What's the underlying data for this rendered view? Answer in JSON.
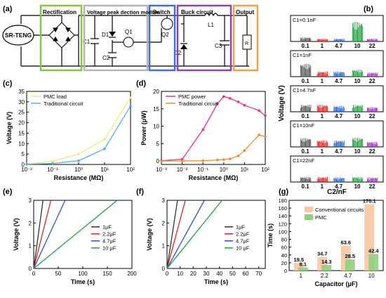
{
  "figure": {
    "panel_labels": [
      "(a)",
      "(b)",
      "(c)",
      "(d)",
      "(e)",
      "(f)",
      "(g)"
    ]
  },
  "circuit": {
    "source": "SR-TENG",
    "modules": [
      {
        "label": "Rectification",
        "color": "#8bc34a"
      },
      {
        "label": "Voltage peak dection module",
        "color": "#b5b5b5"
      },
      {
        "label": "Switch",
        "color": "#3f6fd1"
      },
      {
        "label": "Buck circuit",
        "color": "#8e44ad"
      },
      {
        "label": "Output",
        "color": "#f0a04b"
      }
    ],
    "components": {
      "c1": "C1",
      "d1": "D1",
      "q1": "Q1",
      "c2": "C2",
      "q2": "Q2",
      "l1": "L1",
      "d2": "D2",
      "c3": "C3",
      "load": "R"
    }
  },
  "chart_data": [
    {
      "id": "b",
      "type": "bar",
      "title": "",
      "xlabel": "C2/nF",
      "ylabel": "Voltage (V)",
      "categories": [
        "0.1",
        "1",
        "4.7",
        "10",
        "22"
      ],
      "category_colors": [
        "#555555",
        "#e02020",
        "#2060d0",
        "#20a040",
        "#a030c0"
      ],
      "rows": [
        {
          "label": "C1=0.1nF",
          "values": [
            0.18,
            0.12,
            0.12,
            0.85,
            0.12
          ]
        },
        {
          "label": "C1=1nF",
          "values": [
            0.55,
            0.22,
            0.22,
            0.3,
            0.18
          ]
        },
        {
          "label": "C1=4.7nF",
          "values": [
            0.3,
            0.3,
            0.25,
            0.3,
            0.2
          ]
        },
        {
          "label": "C1=10nF",
          "values": [
            0.38,
            0.28,
            0.28,
            0.4,
            0.22
          ]
        },
        {
          "label": "C1=22nF",
          "values": [
            0.22,
            0.22,
            0.2,
            0.22,
            0.2
          ]
        }
      ]
    },
    {
      "id": "c",
      "type": "line",
      "xlabel": "Resistance (MΩ)",
      "ylabel": "Voltage (V)",
      "xscale": "log",
      "xlim": [
        0.01,
        100
      ],
      "ylim": [
        0,
        35
      ],
      "yticks": [
        0,
        5,
        10,
        15,
        20,
        25,
        30,
        35
      ],
      "xticks": [
        "10⁻²",
        "10⁻¹",
        "10⁰",
        "10¹",
        "10²"
      ],
      "legend": "top-left",
      "series": [
        {
          "name": "PMC load",
          "color": "#f5e87a",
          "x": [
            0.01,
            0.1,
            1,
            10,
            100
          ],
          "y": [
            0.2,
            1.5,
            5,
            12,
            32
          ]
        },
        {
          "name": "Traditional circuit",
          "color": "#4fb0e8",
          "x": [
            0.01,
            0.1,
            1,
            10,
            100
          ],
          "y": [
            0.1,
            0.5,
            1.8,
            7.5,
            28
          ]
        }
      ]
    },
    {
      "id": "d",
      "type": "line",
      "xlabel": "Resistance (MΩ)",
      "ylabel": "Power (μW)",
      "xscale": "log",
      "xlim": [
        0.001,
        100
      ],
      "ylim": [
        -1,
        20
      ],
      "yticks": [
        0,
        5,
        10,
        15,
        20
      ],
      "xticks": [
        "10⁻³",
        "10⁻²",
        "10⁻¹",
        "10⁰",
        "10¹",
        "10²"
      ],
      "legend": "top-left",
      "series": [
        {
          "name": "PMC power",
          "color": "#e8308a",
          "x": [
            0.001,
            0.01,
            0.1,
            0.5,
            1,
            2,
            5,
            10,
            50,
            100
          ],
          "y": [
            0.1,
            0.5,
            9,
            16.5,
            18.5,
            18,
            17,
            16,
            14.5,
            13
          ]
        },
        {
          "name": "Traditional circuit",
          "color": "#f08a2a",
          "x": [
            0.001,
            0.01,
            0.1,
            0.5,
            1,
            2,
            5,
            10,
            50,
            100
          ],
          "y": [
            0,
            0,
            0.1,
            0.3,
            0.4,
            0.6,
            1.5,
            3,
            7.5,
            7
          ]
        }
      ]
    },
    {
      "id": "e",
      "type": "line",
      "xlabel": "Time (s)",
      "ylabel": "Voltage (V)",
      "xlim": [
        0,
        200
      ],
      "ylim": [
        0,
        3
      ],
      "xticks": [
        0,
        50,
        100,
        150,
        200
      ],
      "yticks": [
        0,
        1,
        2,
        3
      ],
      "legend": "right",
      "series": [
        {
          "name": "1μF",
          "color": "#333333",
          "x": [
            0,
            19
          ],
          "y": [
            0,
            3
          ]
        },
        {
          "name": "2.2μF",
          "color": "#e02020",
          "x": [
            0,
            35
          ],
          "y": [
            0,
            3
          ]
        },
        {
          "name": "4.7μF",
          "color": "#3050c8",
          "x": [
            0,
            64
          ],
          "y": [
            0,
            3
          ]
        },
        {
          "name": "10 μF",
          "color": "#20a040",
          "x": [
            0,
            170
          ],
          "y": [
            0,
            3
          ]
        }
      ]
    },
    {
      "id": "f",
      "type": "line",
      "xlabel": "Time (s)",
      "ylabel": "Voltage (V)",
      "xlim": [
        0,
        75
      ],
      "ylim": [
        0,
        3
      ],
      "xticks": [
        0,
        10,
        20,
        30,
        40,
        50,
        60,
        70
      ],
      "yticks": [
        0,
        1,
        2,
        3
      ],
      "legend": "right",
      "series": [
        {
          "name": "1μF",
          "color": "#333333",
          "x": [
            0,
            8
          ],
          "y": [
            0,
            3
          ]
        },
        {
          "name": "2.2μF",
          "color": "#e02020",
          "x": [
            0,
            14
          ],
          "y": [
            0,
            3
          ]
        },
        {
          "name": "4.7μF",
          "color": "#3050c8",
          "x": [
            0,
            28.5
          ],
          "y": [
            0,
            3
          ]
        },
        {
          "name": "10 μF",
          "color": "#20a040",
          "x": [
            0,
            42
          ],
          "y": [
            0,
            3
          ]
        }
      ]
    },
    {
      "id": "g",
      "type": "bar",
      "xlabel": "Capacitor (μF)",
      "ylabel": "Time (s)",
      "categories": [
        "1",
        "2.2",
        "4.7",
        "10"
      ],
      "ylim": [
        0,
        180
      ],
      "yticks": [
        0,
        20,
        40,
        60,
        80,
        100,
        120,
        140,
        160,
        180
      ],
      "legend": "top-left",
      "series": [
        {
          "name": "Conventional circuits",
          "color": "#f6c7a2",
          "values": [
            19.5,
            34.7,
            63.6,
            170.1
          ],
          "labels": [
            "19.5",
            "34.7",
            "63.6",
            "170.1"
          ]
        },
        {
          "name": "PMC",
          "color": "#8fd07e",
          "values": [
            8.1,
            14.3,
            28.5,
            42.4
          ],
          "labels": [
            "8.1",
            "14.3",
            "28.5",
            "42.4"
          ]
        }
      ]
    }
  ]
}
